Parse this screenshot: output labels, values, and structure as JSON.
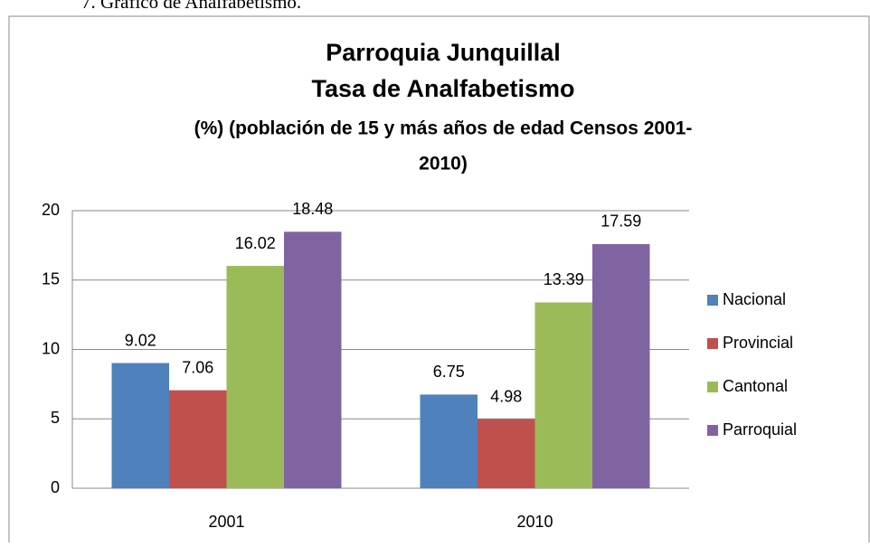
{
  "caption": "7. Gráfico de Analfabetismo.",
  "chart_data": {
    "type": "bar",
    "title": [
      "Parroquia Junquillal",
      "Tasa de Analfabetismo"
    ],
    "subtitle": [
      "(%) (población de 15 y más años de edad Censos 2001-",
      "2010)"
    ],
    "categories": [
      "2001",
      "2010"
    ],
    "series": [
      {
        "name": "Nacional",
        "color": "#4f81bd",
        "values": [
          9.02,
          6.75
        ]
      },
      {
        "name": "Provincial",
        "color": "#c0504d",
        "values": [
          7.06,
          4.98
        ]
      },
      {
        "name": "Cantonal",
        "color": "#9bbb59",
        "values": [
          16.02,
          13.39
        ]
      },
      {
        "name": "Parroquial",
        "color": "#8064a2",
        "values": [
          18.48,
          17.59
        ]
      }
    ],
    "ylim": [
      0,
      20
    ],
    "yticks": [
      0,
      5,
      10,
      15,
      20
    ],
    "grid": true,
    "legend": "right"
  }
}
